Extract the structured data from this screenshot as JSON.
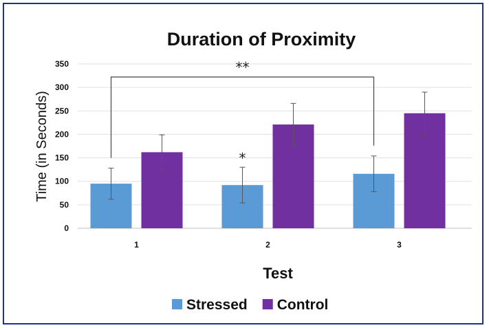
{
  "chart_data": {
    "type": "bar",
    "title": "Duration of Proximity",
    "xlabel": "Test",
    "ylabel": "Time (in Seconds)",
    "categories": [
      "1",
      "2",
      "3"
    ],
    "series": [
      {
        "name": "Stressed",
        "values": [
          95,
          92,
          116
        ],
        "errors": [
          33,
          38,
          38
        ],
        "color": "#5b9bd5"
      },
      {
        "name": "Control",
        "values": [
          162,
          221,
          245
        ],
        "errors": [
          37,
          45,
          45
        ],
        "color": "#7030a0"
      }
    ],
    "ylim": [
      0,
      350
    ],
    "yticks": [
      0,
      50,
      100,
      150,
      200,
      250,
      300,
      350
    ],
    "grid": true,
    "legend_position": "bottom",
    "annotations": [
      {
        "text": "*",
        "category": "2",
        "series": "Stressed"
      },
      {
        "text": "**",
        "bracket": [
          "1",
          "3"
        ],
        "series": "Stressed"
      }
    ]
  }
}
